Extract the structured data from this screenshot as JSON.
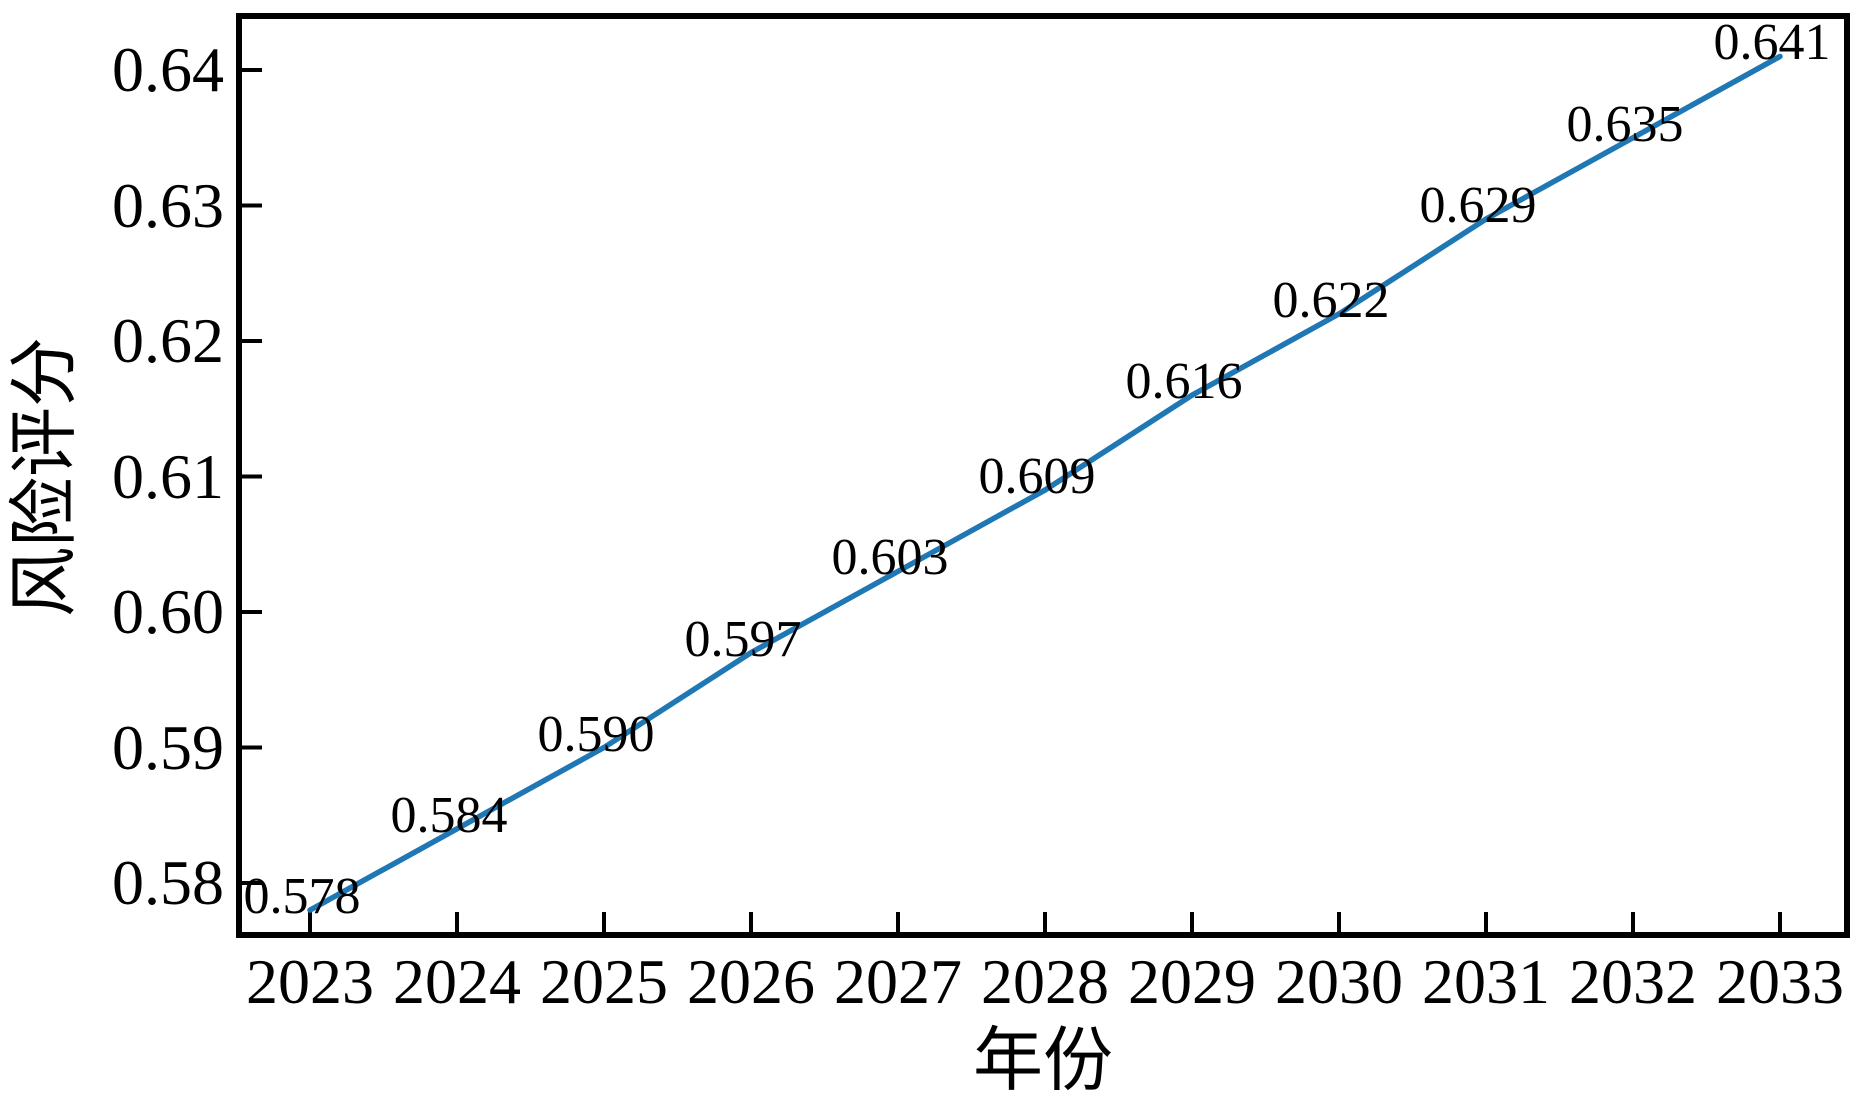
{
  "chart_data": {
    "type": "line",
    "title": "",
    "xlabel": "年份",
    "ylabel": "风险评分",
    "x": [
      2023,
      2024,
      2025,
      2026,
      2027,
      2028,
      2029,
      2030,
      2031,
      2032,
      2033
    ],
    "series": [
      {
        "name": "风险评分",
        "values": [
          0.578,
          0.584,
          0.59,
          0.597,
          0.603,
          0.609,
          0.616,
          0.622,
          0.629,
          0.635,
          0.641
        ],
        "point_labels": [
          "0.578",
          "0.584",
          "0.590",
          "0.597",
          "0.603",
          "0.609",
          "0.616",
          "0.622",
          "0.629",
          "0.635",
          "0.641"
        ],
        "color": "#1f77b4"
      }
    ],
    "x_tick_labels": [
      "2023",
      "2024",
      "2025",
      "2026",
      "2027",
      "2028",
      "2029",
      "2030",
      "2031",
      "2032",
      "2033"
    ],
    "y_ticks": [
      0.58,
      0.59,
      0.6,
      0.61,
      0.62,
      0.63,
      0.64
    ],
    "y_tick_labels": [
      "0.58",
      "0.59",
      "0.60",
      "0.61",
      "0.62",
      "0.63",
      "0.64"
    ],
    "ylim": [
      0.5762,
      0.644
    ],
    "xlim": [
      2022.52,
      2033.46
    ],
    "grid": false,
    "legend": "none",
    "axis_color": "#000000",
    "background_color": "#ffffff"
  }
}
